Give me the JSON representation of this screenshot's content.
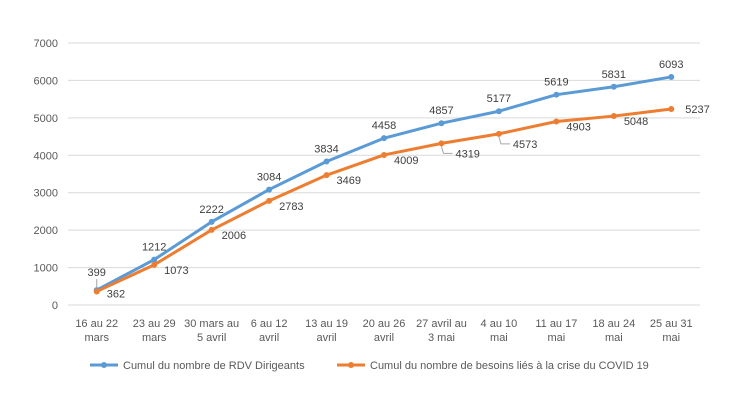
{
  "chart_data": {
    "type": "line",
    "title": "",
    "xlabel": "",
    "ylabel": "",
    "ylim": [
      0,
      7000
    ],
    "yticks": [
      0,
      1000,
      2000,
      3000,
      4000,
      5000,
      6000,
      7000
    ],
    "grid": true,
    "legend_position": "bottom",
    "categories": [
      [
        "16 au 22",
        "mars"
      ],
      [
        "23 au 29",
        "mars"
      ],
      [
        "30 mars au",
        "5 avril"
      ],
      [
        "6 au 12",
        "avril"
      ],
      [
        "13 au 19",
        "avril"
      ],
      [
        "20 au 26",
        "avril"
      ],
      [
        "27 avril au",
        "3 mai"
      ],
      [
        "4 au 10",
        "mai"
      ],
      [
        "11 au 17",
        "mai"
      ],
      [
        "18 au 24",
        "mai"
      ],
      [
        "25 au 31",
        "mai"
      ]
    ],
    "series": [
      {
        "name": "Cumul du nombre de RDV Dirigeants",
        "color": "#5b9bd5",
        "values": [
          399,
          1212,
          2222,
          3084,
          3834,
          4458,
          4857,
          5177,
          5619,
          5831,
          6093
        ],
        "label_position": "above"
      },
      {
        "name": "Cumul du nombre de besoins liés à la crise du COVID 19",
        "color": "#ed7d31",
        "values": [
          362,
          1073,
          2006,
          2783,
          3469,
          4009,
          4319,
          4573,
          4903,
          5048,
          5237
        ],
        "label_position": "below-right"
      }
    ]
  }
}
